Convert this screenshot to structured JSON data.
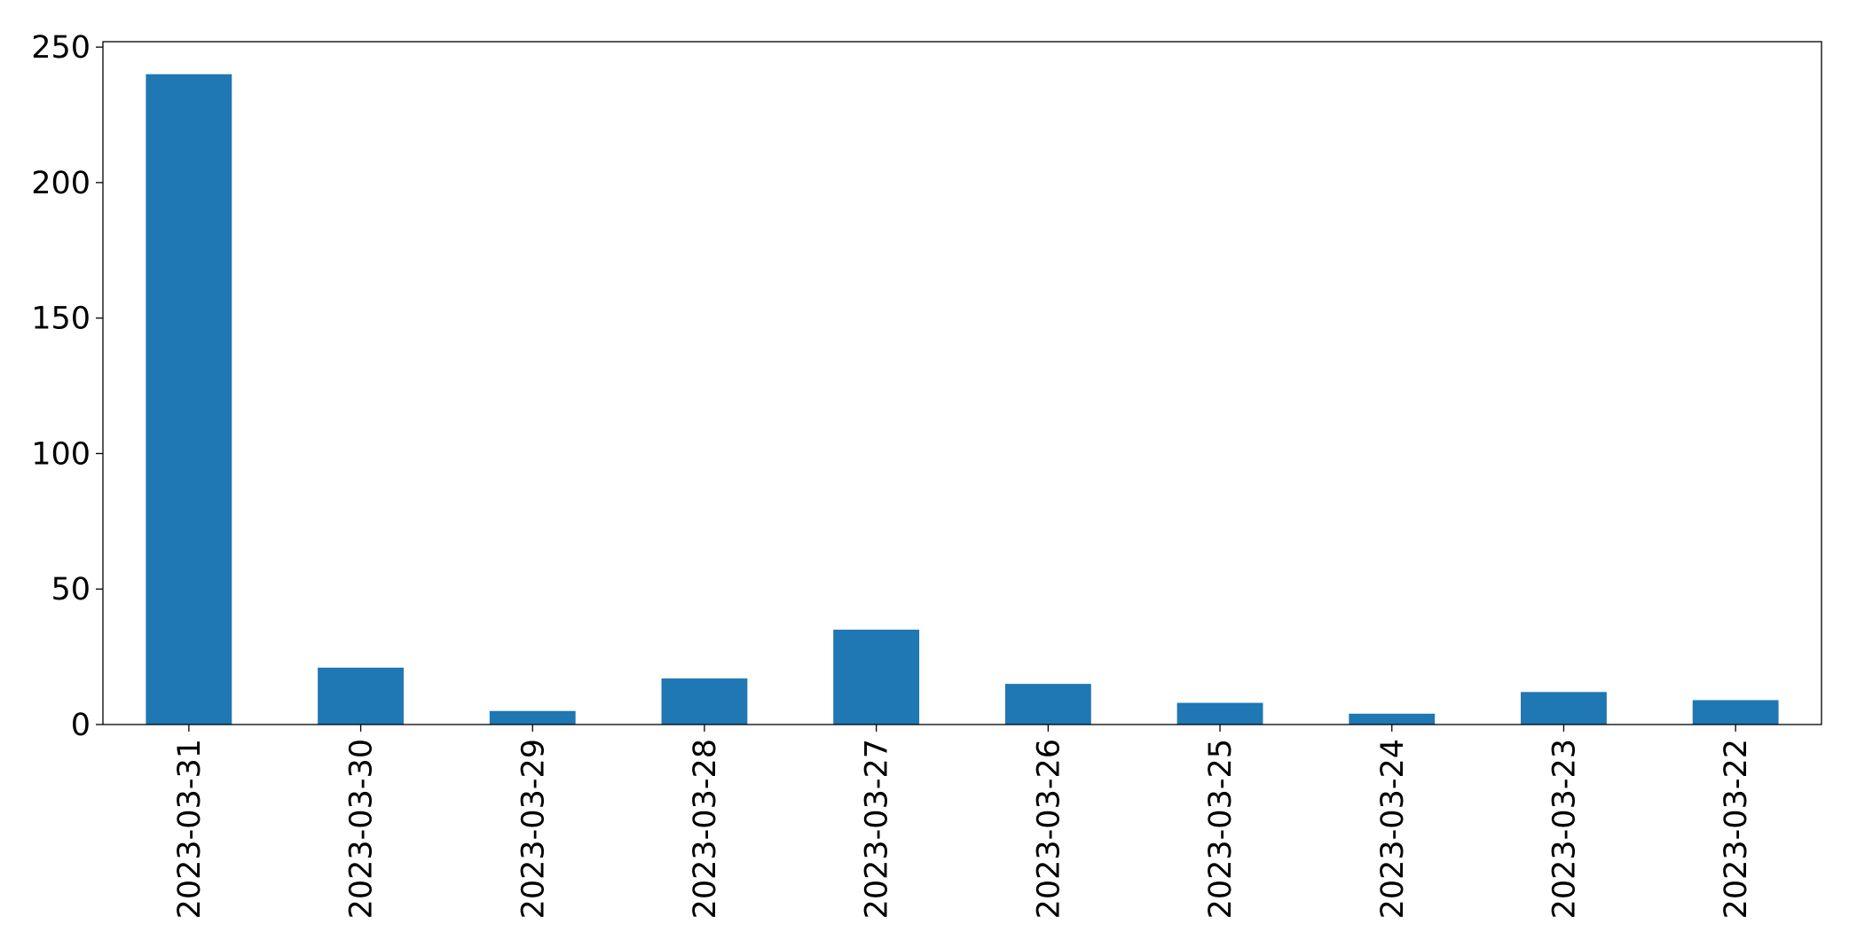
{
  "chart_data": {
    "type": "bar",
    "categories": [
      "2023-03-31",
      "2023-03-30",
      "2023-03-29",
      "2023-03-28",
      "2023-03-27",
      "2023-03-26",
      "2023-03-25",
      "2023-03-24",
      "2023-03-23",
      "2023-03-22"
    ],
    "values": [
      240,
      21,
      5,
      17,
      35,
      15,
      8,
      4,
      12,
      9
    ],
    "color": "#1f77b4",
    "ylim": [
      0,
      252
    ],
    "yticks": [
      0,
      50,
      100,
      150,
      200,
      250
    ],
    "grid": false
  }
}
